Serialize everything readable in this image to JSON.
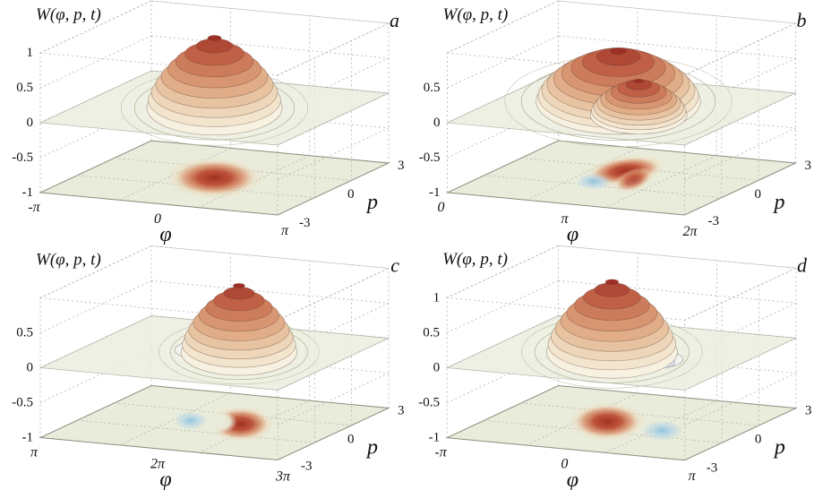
{
  "figure": {
    "panels": [
      {
        "letter": "a",
        "title": "W(φ, p, t)",
        "z_ticks": [
          "1",
          "0.5",
          "0",
          "-0.5",
          "-1"
        ],
        "phi_ticks": [
          "-π",
          "0",
          "π"
        ],
        "phi_label": "φ",
        "p_ticks": [
          "-3",
          "0",
          "3"
        ],
        "p_label": "p"
      },
      {
        "letter": "b",
        "title": "W(φ, p, t)",
        "z_ticks": [
          "0.5",
          "0",
          "-0.5",
          "-1"
        ],
        "phi_ticks": [
          "0",
          "π",
          "2π"
        ],
        "phi_label": "φ",
        "p_ticks": [
          "-3",
          "0",
          "3"
        ],
        "p_label": "p"
      },
      {
        "letter": "c",
        "title": "W(φ, p, t)",
        "z_ticks": [
          "0.5",
          "0",
          "-0.5",
          "-1"
        ],
        "phi_ticks": [
          "π",
          "2π",
          "3π"
        ],
        "phi_label": "φ",
        "p_ticks": [
          "-3",
          "0",
          "3"
        ],
        "p_label": "p"
      },
      {
        "letter": "d",
        "title": "W(φ, p, t)",
        "z_ticks": [
          "1",
          "0.5",
          "0",
          "-0.5",
          "-1"
        ],
        "phi_ticks": [
          "-π",
          "0",
          "π"
        ],
        "phi_label": "φ",
        "p_ticks": [
          "-3",
          "0",
          "3"
        ],
        "p_label": "p"
      }
    ]
  },
  "chart_data": [
    {
      "panel": "a",
      "type": "surface",
      "title": "W(φ, p, t)",
      "axes": {
        "W": {
          "range": [
            -1,
            1
          ],
          "ticks": [
            1,
            0.5,
            0,
            -0.5,
            -1
          ]
        },
        "phi": {
          "label": "φ",
          "tick_labels": [
            "-π",
            "0",
            "π"
          ]
        },
        "p": {
          "label": "p",
          "range": [
            -3,
            3
          ],
          "ticks": [
            -3,
            0,
            3
          ]
        }
      },
      "peak_height": 1.0,
      "description": "Single positive Gaussian-like Wigner function peak centered near φ = 0, p = 0; peak ≈ 1; no negative regions; single red density spot on the bottom projection plane; semi-transparent plane at W = 0.",
      "render": {
        "blobs": [
          {
            "u": 0.5,
            "v": 0.5,
            "ru": 0.2,
            "rv": 0.085,
            "angle": 0,
            "color": "red"
          }
        ],
        "domes": [
          {
            "u": 0.5,
            "v": 0.5,
            "ru": 0.28,
            "h": 1.0
          }
        ],
        "dips": []
      }
    },
    {
      "panel": "b",
      "type": "surface",
      "title": "W(φ, p, t)",
      "axes": {
        "W": {
          "range": [
            -1,
            1
          ],
          "ticks": [
            0.5,
            0,
            -0.5,
            -1
          ]
        },
        "phi": {
          "label": "φ",
          "tick_labels": [
            "0",
            "π",
            "2π"
          ]
        },
        "p": {
          "label": "p",
          "range": [
            -3,
            3
          ],
          "ticks": [
            -3,
            0,
            3
          ]
        }
      },
      "peak_height": 0.7,
      "description": "Broad deformed positive ridge near φ ≈ π split into two merging maxima (peak ≈ 0.7), with an interference dip punching through the W = 0 plane; bottom projection shows an elongated comma-shaped red region with a small blue negative patch in front of it.",
      "render": {
        "blobs": [
          {
            "u": 0.46,
            "v": 0.62,
            "ru": 0.17,
            "rv": 0.062,
            "angle": -8,
            "color": "red"
          },
          {
            "u": 0.56,
            "v": 0.48,
            "ru": 0.09,
            "rv": 0.045,
            "angle": -20,
            "color": "red",
            "opacity": 0.8
          },
          {
            "u": 0.43,
            "v": 0.4,
            "ru": 0.075,
            "rv": 0.034,
            "angle": 0,
            "color": "blue"
          }
        ],
        "domes": [
          {
            "u": 0.44,
            "v": 0.6,
            "ru": 0.34,
            "h": 0.72
          },
          {
            "u": 0.61,
            "v": 0.42,
            "ru": 0.2,
            "h": 0.48,
            "skirt": false
          }
        ],
        "dips": [
          {
            "u": 0.56,
            "v": 0.34,
            "r": 0.1
          }
        ]
      }
    },
    {
      "panel": "c",
      "type": "surface",
      "title": "W(φ, p, t)",
      "axes": {
        "W": {
          "range": [
            -1,
            1
          ],
          "ticks": [
            0.5,
            0,
            -0.5,
            -1
          ]
        },
        "phi": {
          "label": "φ",
          "tick_labels": [
            "π",
            "2π",
            "3π"
          ]
        },
        "p": {
          "label": "p",
          "range": [
            -3,
            3
          ],
          "ticks": [
            -3,
            0,
            3
          ]
        }
      },
      "peak_height": 0.9,
      "description": "Tall positive peak near φ ≈ 2π (peak ≈ 0.9) with a crescent-shaped skirt opening to the left and a negative dip below the W = 0 plane on its left; bottom projection shows a red crescent with a blue negative spot to its left.",
      "render": {
        "blobs": [
          {
            "u": 0.6,
            "v": 0.52,
            "ru": 0.14,
            "rv": 0.075,
            "angle": 0,
            "color": "red"
          },
          {
            "u": 0.51,
            "v": 0.52,
            "ru": 0.075,
            "rv": 0.048,
            "angle": 0,
            "color": "plane"
          },
          {
            "u": 0.4,
            "v": 0.5,
            "ru": 0.07,
            "rv": 0.038,
            "angle": 0,
            "color": "blue"
          }
        ],
        "domes": [
          {
            "u": 0.58,
            "v": 0.55,
            "ru": 0.24,
            "h": 0.95
          }
        ],
        "dips": [
          {
            "u": 0.41,
            "v": 0.52,
            "r": 0.085
          }
        ]
      }
    },
    {
      "panel": "d",
      "type": "surface",
      "title": "W(φ, p, t)",
      "axes": {
        "W": {
          "range": [
            -1,
            1
          ],
          "ticks": [
            1,
            0.5,
            0,
            -0.5,
            -1
          ]
        },
        "phi": {
          "label": "φ",
          "tick_labels": [
            "-π",
            "0",
            "π"
          ]
        },
        "p": {
          "label": "p",
          "range": [
            -3,
            3
          ],
          "ticks": [
            -3,
            0,
            3
          ]
        }
      },
      "peak_height": 1.0,
      "description": "Positive peak near φ ≈ 0 (peak ≈ 1) with a negative blue lobe on its right piercing the W = 0 plane; bottom projection shows a large red spot with a blue negative spot to the right.",
      "render": {
        "blobs": [
          {
            "u": 0.44,
            "v": 0.5,
            "ru": 0.16,
            "rv": 0.08,
            "angle": 0,
            "color": "red"
          },
          {
            "u": 0.7,
            "v": 0.44,
            "ru": 0.085,
            "rv": 0.042,
            "angle": 0,
            "color": "blue"
          }
        ],
        "domes": [
          {
            "u": 0.46,
            "v": 0.5,
            "ru": 0.27,
            "h": 1.0
          }
        ],
        "dips": [
          {
            "u": 0.69,
            "v": 0.46,
            "r": 0.085
          }
        ]
      }
    }
  ],
  "colors": {
    "plane": "#e9ecda",
    "positive_peak": "#a33022",
    "negative_region": "#8cbfdc",
    "grid": "#b3b3b3"
  }
}
